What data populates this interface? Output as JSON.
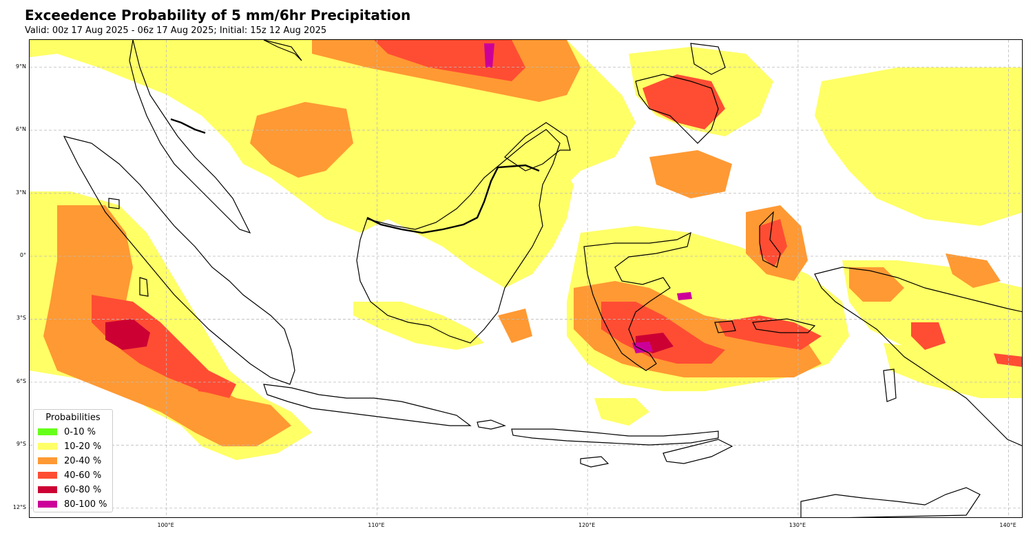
{
  "title": "Exceedence Probability of 5 mm/6hr Precipitation",
  "subtitle": "Valid: 00z 17 Aug 2025 - 06z 17 Aug 2025; Initial: 15z 12 Aug 2025",
  "map": {
    "lon_range": [
      93.5,
      140.7
    ],
    "lat_range": [
      -12.5,
      10.3
    ],
    "gridlines": true,
    "lat_ticks": [
      {
        "value": 9,
        "label": "9°N"
      },
      {
        "value": 6,
        "label": "6°N"
      },
      {
        "value": 3,
        "label": "3°N"
      },
      {
        "value": 0,
        "label": "0°"
      },
      {
        "value": -3,
        "label": "3°S"
      },
      {
        "value": -6,
        "label": "6°S"
      },
      {
        "value": -9,
        "label": "9°S"
      },
      {
        "value": -12,
        "label": "12°S"
      }
    ],
    "lon_ticks": [
      {
        "value": 100,
        "label": "100°E"
      },
      {
        "value": 110,
        "label": "110°E"
      },
      {
        "value": 120,
        "label": "120°E"
      },
      {
        "value": 130,
        "label": "130°E"
      },
      {
        "value": 140,
        "label": "140°E"
      }
    ]
  },
  "legend": {
    "title": "Probabilities",
    "position": "bottom-left",
    "items": [
      {
        "label": "0-10 %",
        "color": "#66ff1a"
      },
      {
        "label": "10-20 %",
        "color": "#ffff66"
      },
      {
        "label": "20-40 %",
        "color": "#ff9933"
      },
      {
        "label": "40-60 %",
        "color": "#ff4d33"
      },
      {
        "label": "60-80 %",
        "color": "#cc0033"
      },
      {
        "label": "80-100 %",
        "color": "#cc0099"
      }
    ]
  }
}
